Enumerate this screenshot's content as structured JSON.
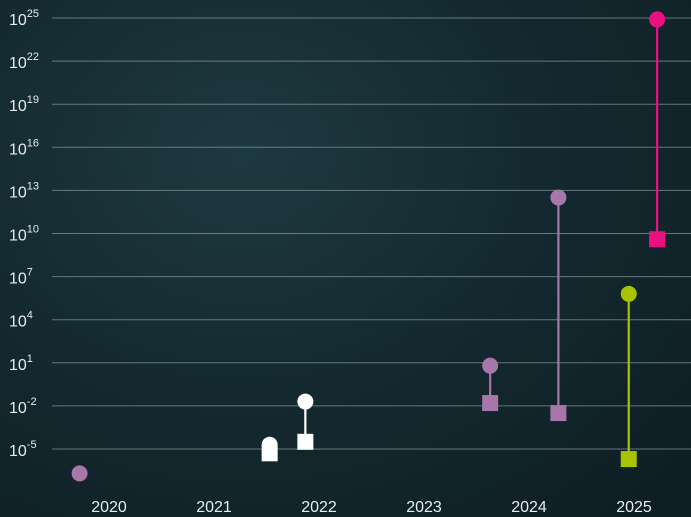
{
  "chart_data": {
    "type": "scatter",
    "title": "",
    "xlabel": "",
    "ylabel": "",
    "y_scale": "log10",
    "ylim_exponent": [
      -5,
      25
    ],
    "y_ticks": [
      {
        "base": "10",
        "exp": "25"
      },
      {
        "base": "10",
        "exp": "22"
      },
      {
        "base": "10",
        "exp": "19"
      },
      {
        "base": "10",
        "exp": "16"
      },
      {
        "base": "10",
        "exp": "13"
      },
      {
        "base": "10",
        "exp": "10"
      },
      {
        "base": "10",
        "exp": "7"
      },
      {
        "base": "10",
        "exp": "4"
      },
      {
        "base": "10",
        "exp": "1"
      },
      {
        "base": "10",
        "exp": "-2"
      },
      {
        "base": "10",
        "exp": "-5"
      }
    ],
    "x_ticks": [
      "2020",
      "2021",
      "2022",
      "2023",
      "2024",
      "2025"
    ],
    "grid": "horizontal",
    "marker_legend": "circle = upper value, square = lower value (no legend printed)",
    "points": [
      {
        "x": 2019.72,
        "circle_exp": -6.7,
        "square_exp": null,
        "color": "#a777aa"
      },
      {
        "x": 2021.53,
        "circle_exp": -4.7,
        "square_exp": -5.3,
        "color": "#ffffff"
      },
      {
        "x": 2021.87,
        "circle_exp": -1.7,
        "square_exp": -4.5,
        "color": "#ffffff"
      },
      {
        "x": 2023.63,
        "circle_exp": 0.8,
        "square_exp": -1.8,
        "color": "#a777aa"
      },
      {
        "x": 2024.28,
        "circle_exp": 12.5,
        "square_exp": -2.5,
        "color": "#a777aa"
      },
      {
        "x": 2024.95,
        "circle_exp": 5.8,
        "square_exp": -5.7,
        "color": "#a8c400"
      },
      {
        "x": 2025.22,
        "circle_exp": 24.9,
        "square_exp": 9.6,
        "color": "#e8117f"
      }
    ]
  }
}
